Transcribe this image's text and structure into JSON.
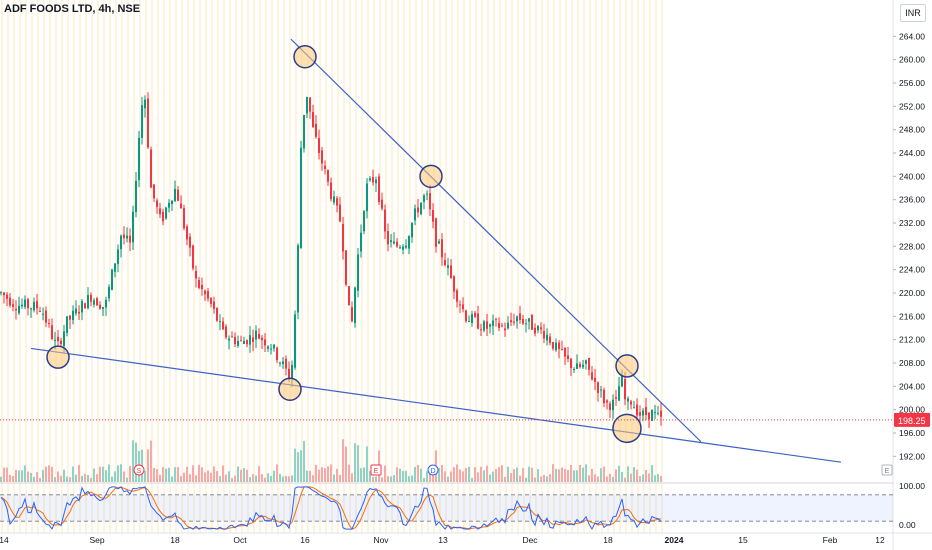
{
  "header": {
    "title": "ADF FOODS LTD, 4h, NSE",
    "currency": "INR"
  },
  "chart_data": {
    "type": "candlestick",
    "price_axis": {
      "ticks": [
        192,
        196,
        200,
        204,
        208,
        212,
        216,
        220,
        224,
        228,
        232,
        236,
        240,
        244,
        248,
        252,
        256,
        260,
        264
      ],
      "tick_labels": [
        "192.00",
        "196.00",
        "200.00",
        "204.00",
        "208.00",
        "212.00",
        "216.00",
        "220.00",
        "224.00",
        "228.00",
        "232.00",
        "236.00",
        "240.00",
        "244.00",
        "248.00",
        "252.00",
        "256.00",
        "260.00",
        "264.00"
      ],
      "range": [
        187.6,
        266.8
      ]
    },
    "last_price": {
      "value": 198.25,
      "label": "198.25",
      "color": "#f23645"
    },
    "time_axis": {
      "labels": [
        "14",
        "Sep",
        "18",
        "Oct",
        "16",
        "Nov",
        "13",
        "Dec",
        "18",
        "2024",
        "15",
        "Feb",
        "12"
      ]
    },
    "close_series": [
      {
        "bar": 0,
        "close": 220.0
      },
      {
        "bar": 15,
        "close": 218.0
      },
      {
        "bar": 40,
        "close": 217.5
      },
      {
        "bar": 56,
        "close": 210.5
      },
      {
        "bar": 66,
        "close": 215.0
      },
      {
        "bar": 90,
        "close": 219.5
      },
      {
        "bar": 104,
        "close": 217.5
      },
      {
        "bar": 112,
        "close": 224.0
      },
      {
        "bar": 120,
        "close": 230.0
      },
      {
        "bar": 130,
        "close": 228.0
      },
      {
        "bar": 137,
        "close": 245.0
      },
      {
        "bar": 143,
        "close": 256.0
      },
      {
        "bar": 150,
        "close": 238.0
      },
      {
        "bar": 160,
        "close": 232.0
      },
      {
        "bar": 168,
        "close": 236.0
      },
      {
        "bar": 175,
        "close": 238.0
      },
      {
        "bar": 185,
        "close": 230.0
      },
      {
        "bar": 195,
        "close": 222.0
      },
      {
        "bar": 210,
        "close": 218.0
      },
      {
        "bar": 222,
        "close": 213.0
      },
      {
        "bar": 240,
        "close": 211.5
      },
      {
        "bar": 255,
        "close": 213.0
      },
      {
        "bar": 270,
        "close": 211.0
      },
      {
        "bar": 284,
        "close": 207.0
      },
      {
        "bar": 290,
        "close": 205.0
      },
      {
        "bar": 296,
        "close": 222.0
      },
      {
        "bar": 300,
        "close": 245.0
      },
      {
        "bar": 305,
        "close": 255.0
      },
      {
        "bar": 312,
        "close": 248.0
      },
      {
        "bar": 320,
        "close": 243.0
      },
      {
        "bar": 330,
        "close": 237.0
      },
      {
        "bar": 340,
        "close": 232.0
      },
      {
        "bar": 350,
        "close": 213.0
      },
      {
        "bar": 356,
        "close": 225.0
      },
      {
        "bar": 365,
        "close": 238.0
      },
      {
        "bar": 375,
        "close": 240.0
      },
      {
        "bar": 385,
        "close": 229.0
      },
      {
        "bar": 395,
        "close": 228.0
      },
      {
        "bar": 405,
        "close": 229.0
      },
      {
        "bar": 415,
        "close": 234.0
      },
      {
        "bar": 425,
        "close": 237.0
      },
      {
        "bar": 435,
        "close": 229.0
      },
      {
        "bar": 445,
        "close": 225.0
      },
      {
        "bar": 455,
        "close": 220.0
      },
      {
        "bar": 465,
        "close": 216.0
      },
      {
        "bar": 475,
        "close": 215.0
      },
      {
        "bar": 485,
        "close": 214.0
      },
      {
        "bar": 495,
        "close": 214.5
      },
      {
        "bar": 505,
        "close": 214.0
      },
      {
        "bar": 515,
        "close": 216.0
      },
      {
        "bar": 525,
        "close": 215.0
      },
      {
        "bar": 535,
        "close": 214.0
      },
      {
        "bar": 545,
        "close": 213.0
      },
      {
        "bar": 555,
        "close": 210.5
      },
      {
        "bar": 565,
        "close": 208.5
      },
      {
        "bar": 575,
        "close": 207.0
      },
      {
        "bar": 585,
        "close": 207.5
      },
      {
        "bar": 595,
        "close": 204.5
      },
      {
        "bar": 605,
        "close": 201.0
      },
      {
        "bar": 615,
        "close": 201.0
      },
      {
        "bar": 620,
        "close": 206.0
      },
      {
        "bar": 625,
        "close": 200.5
      },
      {
        "bar": 630,
        "close": 201.5
      },
      {
        "bar": 640,
        "close": 199.0
      },
      {
        "bar": 650,
        "close": 199.5
      },
      {
        "bar": 660,
        "close": 198.25
      }
    ],
    "trendlines": [
      {
        "name": "upper-trendline",
        "points": [
          {
            "bar": 290,
            "price": 263.5
          },
          {
            "bar": 700,
            "price": 194.5
          }
        ]
      },
      {
        "name": "lower-trendline",
        "points": [
          {
            "bar": 30,
            "price": 210.5
          },
          {
            "bar": 840,
            "price": 191.0
          }
        ]
      }
    ],
    "annotations": {
      "touch_circles": [
        {
          "bar": 57,
          "price": 209.0
        },
        {
          "bar": 289,
          "price": 203.5
        },
        {
          "bar": 304,
          "price": 260.5
        },
        {
          "bar": 430,
          "price": 240.0
        },
        {
          "bar": 626,
          "price": 207.5
        },
        {
          "bar": 626,
          "price": 196.8
        }
      ],
      "event_markers": [
        "S",
        "E",
        "D",
        "E"
      ]
    },
    "oscillator": {
      "levels": [
        0,
        100
      ],
      "level_labels": [
        "0.00",
        "100.00"
      ],
      "bands": [
        20,
        80
      ]
    },
    "colors": {
      "up": "#089981",
      "down": "#f23645",
      "trendline": "#3d62c4",
      "k_line": "#2962ff",
      "d_line": "#ff6d00"
    }
  }
}
